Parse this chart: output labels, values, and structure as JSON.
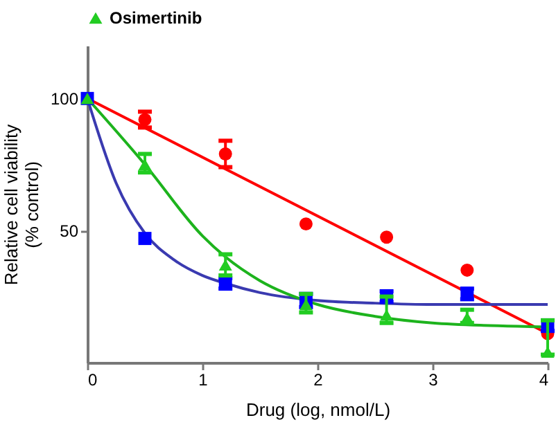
{
  "chart_data": {
    "type": "scatter",
    "xlabel": "Drug (log, nmol/L)",
    "ylabel": "Relative cell viability\n(% control)",
    "xlim": [
      0,
      4
    ],
    "xticks": [
      {
        "value": 0,
        "label": "0"
      },
      {
        "value": 1,
        "label": "1"
      },
      {
        "value": 2,
        "label": "2"
      },
      {
        "value": 3,
        "label": "3"
      },
      {
        "value": 4,
        "label": "4"
      }
    ],
    "ylim": [
      0,
      120
    ],
    "yticks": [
      50,
      100
    ],
    "grid": false,
    "legend": "top",
    "series": [
      {
        "type": "line",
        "color": "#ff0000",
        "x": [
          0,
          4
        ],
        "values": [
          100,
          11
        ]
      },
      {
        "type": "line",
        "color": "#3a3ab0",
        "x": [
          0,
          0.25,
          0.5,
          0.75,
          1,
          1.2,
          1.5,
          2,
          2.5,
          3,
          4
        ],
        "values": [
          100,
          68,
          49,
          39,
          33,
          30,
          26.5,
          23.5,
          22.5,
          22,
          22
        ]
      },
      {
        "type": "line",
        "color": "#1db31d",
        "x": [
          0,
          0.5,
          1,
          1.2,
          1.5,
          2,
          2.5,
          3,
          3.5,
          4
        ],
        "values": [
          100,
          75,
          48,
          40,
          31,
          22,
          17.5,
          15,
          14,
          13.5
        ]
      },
      {
        "marker": "circle",
        "color": "#ff0000",
        "x": [
          0.5,
          1.2,
          1.9,
          2.6,
          3.3,
          4
        ],
        "values": [
          92,
          79,
          52.5,
          47.5,
          35,
          11
        ],
        "errors": [
          [
            89,
            95
          ],
          [
            74,
            84
          ],
          null,
          null,
          null,
          null
        ]
      },
      {
        "marker": "square",
        "color": "#0000ff",
        "x": [
          0,
          0.5,
          1.2,
          1.9,
          2.6,
          3.3,
          4
        ],
        "values": [
          100,
          47,
          30,
          23,
          25,
          26,
          14
        ],
        "errors": [
          null,
          null,
          [
            28,
            32
          ],
          [
            21,
            26
          ],
          [
            23,
            27
          ],
          [
            24,
            28
          ],
          [
            12,
            16
          ]
        ]
      },
      {
        "name": "Osimertinib",
        "marker": "triangle",
        "color": "#22cc22",
        "x": [
          0,
          0.5,
          1.2,
          1.9,
          2.6,
          3.3,
          4
        ],
        "values": [
          100,
          75,
          37,
          22,
          18,
          17,
          4
        ],
        "errors": [
          null,
          [
            72,
            79
          ],
          [
            33,
            41
          ],
          [
            19,
            26
          ],
          [
            15,
            25
          ],
          [
            15,
            20
          ],
          [
            3,
            16
          ]
        ]
      }
    ]
  }
}
